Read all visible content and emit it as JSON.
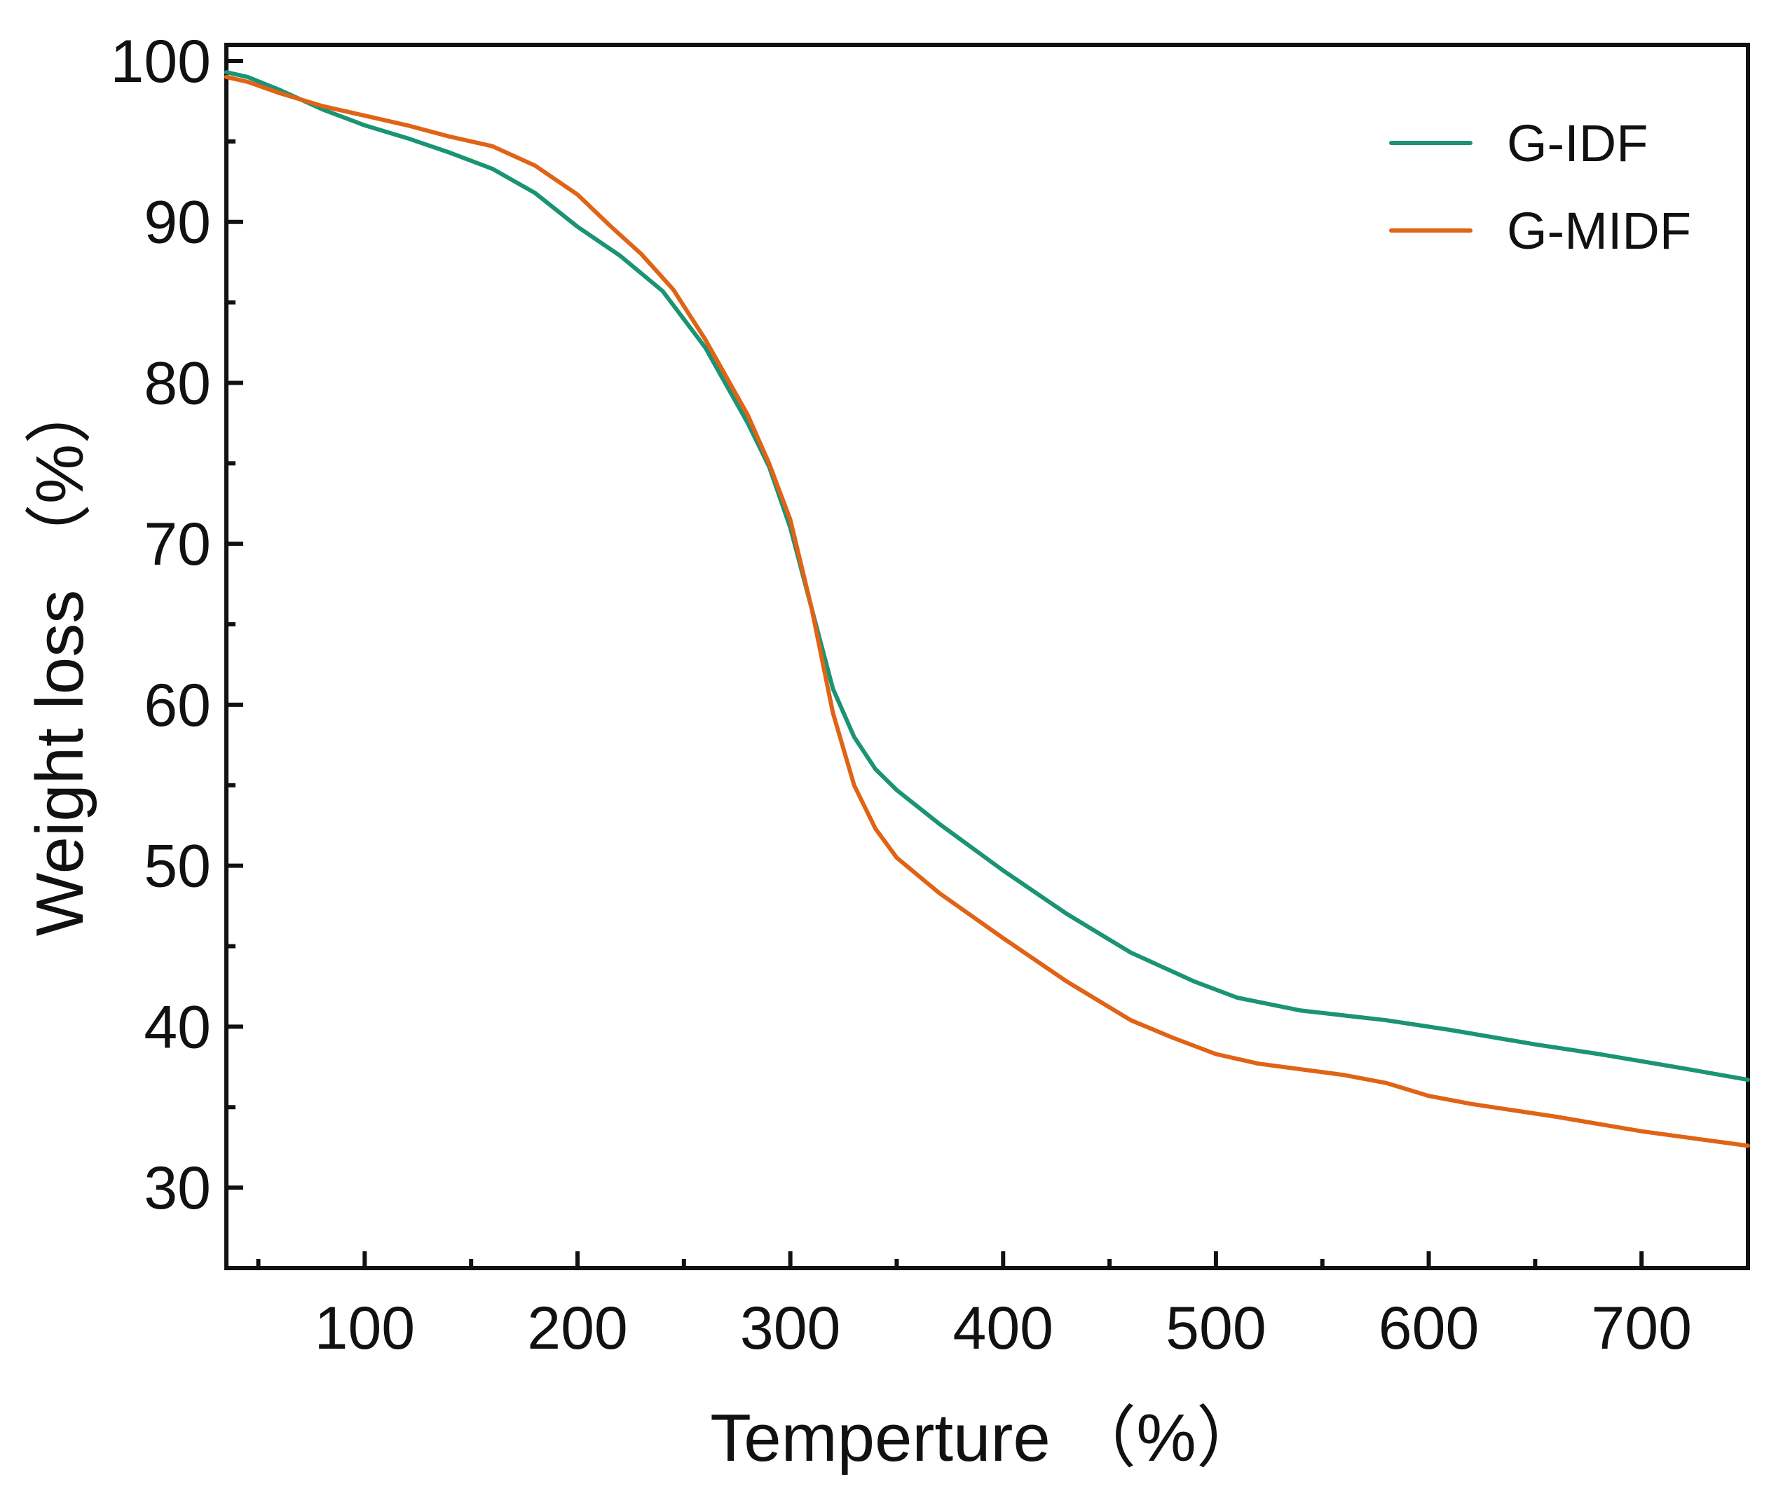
{
  "chart_data": {
    "type": "line",
    "title": "",
    "xlabel": "Temperture （%）",
    "ylabel": "Weight loss （%）",
    "xlim": [
      35,
      750
    ],
    "ylim": [
      25,
      101
    ],
    "x_ticks": [
      100,
      200,
      300,
      400,
      500,
      600,
      700
    ],
    "x_minor_ticks": [
      50,
      150,
      250,
      350,
      450,
      550,
      650,
      750
    ],
    "y_ticks": [
      30,
      40,
      50,
      60,
      70,
      80,
      90,
      100
    ],
    "y_minor_ticks": [
      35,
      45,
      55,
      65,
      75,
      85,
      95
    ],
    "legend_position": "top-right",
    "grid": false,
    "series": [
      {
        "name": "G-IDF",
        "color": "#1a9474",
        "points": [
          [
            35,
            99.3
          ],
          [
            45,
            99.0
          ],
          [
            60,
            98.2
          ],
          [
            80,
            97.0
          ],
          [
            100,
            96.0
          ],
          [
            120,
            95.2
          ],
          [
            140,
            94.3
          ],
          [
            160,
            93.3
          ],
          [
            180,
            91.8
          ],
          [
            200,
            89.7
          ],
          [
            220,
            87.9
          ],
          [
            240,
            85.7
          ],
          [
            260,
            82.2
          ],
          [
            280,
            77.5
          ],
          [
            290,
            74.8
          ],
          [
            300,
            71.0
          ],
          [
            310,
            66.0
          ],
          [
            320,
            61.0
          ],
          [
            330,
            58.0
          ],
          [
            340,
            56.0
          ],
          [
            350,
            54.7
          ],
          [
            370,
            52.6
          ],
          [
            400,
            49.7
          ],
          [
            430,
            47.0
          ],
          [
            460,
            44.6
          ],
          [
            490,
            42.8
          ],
          [
            510,
            41.8
          ],
          [
            540,
            41.0
          ],
          [
            580,
            40.4
          ],
          [
            610,
            39.8
          ],
          [
            650,
            38.9
          ],
          [
            680,
            38.3
          ],
          [
            720,
            37.4
          ],
          [
            750,
            36.7
          ]
        ]
      },
      {
        "name": "G-MIDF",
        "color": "#e06316",
        "points": [
          [
            35,
            99.0
          ],
          [
            45,
            98.7
          ],
          [
            60,
            98.0
          ],
          [
            80,
            97.2
          ],
          [
            100,
            96.6
          ],
          [
            120,
            96.0
          ],
          [
            140,
            95.3
          ],
          [
            160,
            94.7
          ],
          [
            180,
            93.5
          ],
          [
            200,
            91.7
          ],
          [
            215,
            89.8
          ],
          [
            230,
            88.0
          ],
          [
            245,
            85.8
          ],
          [
            260,
            82.7
          ],
          [
            280,
            78.0
          ],
          [
            290,
            75.0
          ],
          [
            300,
            71.5
          ],
          [
            310,
            66.0
          ],
          [
            320,
            59.5
          ],
          [
            330,
            55.0
          ],
          [
            340,
            52.3
          ],
          [
            350,
            50.5
          ],
          [
            370,
            48.3
          ],
          [
            400,
            45.5
          ],
          [
            430,
            42.8
          ],
          [
            460,
            40.4
          ],
          [
            480,
            39.3
          ],
          [
            500,
            38.3
          ],
          [
            520,
            37.7
          ],
          [
            560,
            37.0
          ],
          [
            580,
            36.5
          ],
          [
            600,
            35.7
          ],
          [
            620,
            35.2
          ],
          [
            660,
            34.4
          ],
          [
            700,
            33.5
          ],
          [
            750,
            32.6
          ]
        ]
      }
    ]
  }
}
